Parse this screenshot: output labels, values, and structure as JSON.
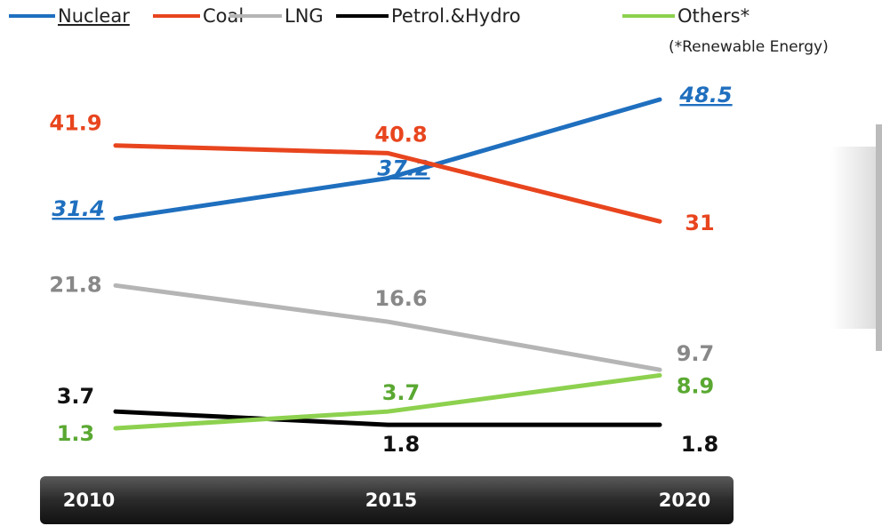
{
  "chart_data": {
    "type": "line",
    "annotation": "(*Renewable Energy)",
    "categories": [
      "2010",
      "2015",
      "2020"
    ],
    "series": [
      {
        "name": "Nuclear",
        "color": "#1f6fbf",
        "values": [
          31.4,
          37.2,
          48.5
        ]
      },
      {
        "name": "Coal",
        "color": "#e8451e",
        "values": [
          41.9,
          40.8,
          31
        ]
      },
      {
        "name": "LNG",
        "color": "#b5b5b5",
        "values": [
          21.8,
          16.6,
          9.7
        ]
      },
      {
        "name": "Petrol.&Hydro",
        "color": "#000000",
        "values": [
          3.7,
          1.8,
          1.8
        ]
      },
      {
        "name": "Others*",
        "color": "#8dd14f",
        "values": [
          1.3,
          3.7,
          8.9
        ]
      }
    ]
  }
}
